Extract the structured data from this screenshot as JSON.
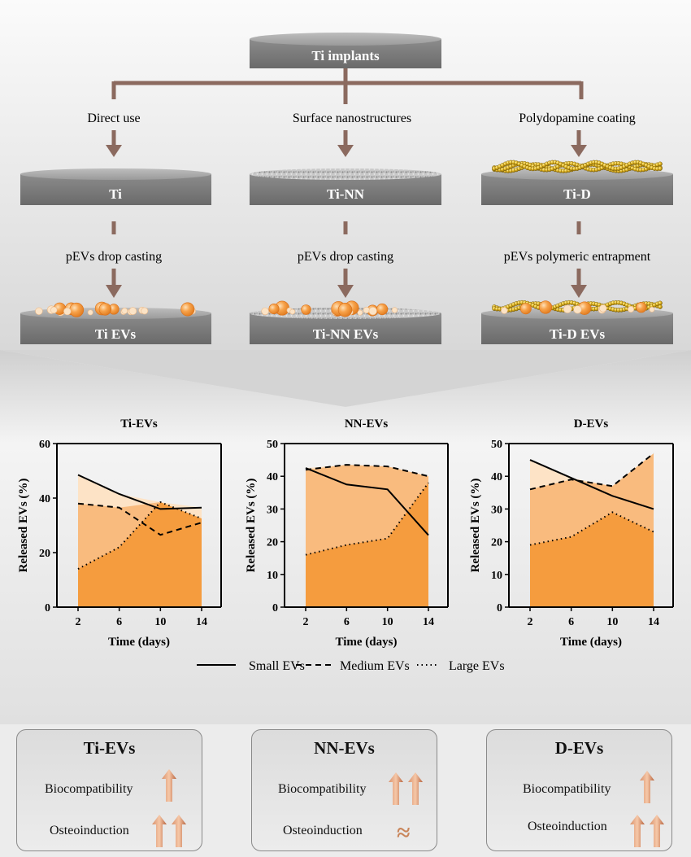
{
  "flowchart": {
    "top_label": "Ti implants",
    "branches": [
      {
        "method": "Direct use",
        "surface": "Ti",
        "load_method": "pEVs drop casting",
        "result": "Ti EVs"
      },
      {
        "method": "Surface nanostructures",
        "surface": "Ti-NN",
        "load_method": "pEVs drop casting",
        "result": "Ti-NN EVs"
      },
      {
        "method": "Polydopamine coating",
        "surface": "Ti-D",
        "load_method": "pEVs polymeric entrapment",
        "result": "Ti-D EVs"
      }
    ],
    "colors": {
      "arrow": "#8b6a5f",
      "disc": "#7f7f7f",
      "ev": "#f39a3d"
    }
  },
  "chart_data": [
    {
      "type": "area",
      "title": "Ti-EVs",
      "xlabel": "Time (days)",
      "ylabel": "Released EVs (%)",
      "x": [
        2,
        6,
        10,
        14
      ],
      "xticks": [
        "2",
        "6",
        "10",
        "14"
      ],
      "ylim": [
        0,
        60
      ],
      "yticks": [
        "0",
        "20",
        "40",
        "60"
      ],
      "series": [
        {
          "name": "Small EVs",
          "values": [
            48.5,
            41.5,
            36,
            36.5
          ]
        },
        {
          "name": "Medium EVs",
          "values": [
            38,
            36.5,
            26.5,
            31
          ]
        },
        {
          "name": "Large EVs",
          "values": [
            14,
            22,
            38.5,
            32.5
          ]
        }
      ]
    },
    {
      "type": "area",
      "title": "NN-EVs",
      "xlabel": "Time (days)",
      "ylabel": "Released EVs (%)",
      "x": [
        2,
        6,
        10,
        14
      ],
      "xticks": [
        "2",
        "6",
        "10",
        "14"
      ],
      "ylim": [
        0,
        50
      ],
      "yticks": [
        "0",
        "10",
        "20",
        "30",
        "40",
        "50"
      ],
      "series": [
        {
          "name": "Small EVs",
          "values": [
            42.5,
            37.5,
            36,
            22
          ]
        },
        {
          "name": "Medium EVs",
          "values": [
            42,
            43.5,
            43,
            40
          ]
        },
        {
          "name": "Large EVs",
          "values": [
            16,
            19,
            21,
            38
          ]
        }
      ]
    },
    {
      "type": "area",
      "title": "D-EVs",
      "xlabel": "Time (days)",
      "ylabel": "Released EVs (%)",
      "x": [
        2,
        6,
        10,
        14
      ],
      "xticks": [
        "2",
        "6",
        "10",
        "14"
      ],
      "ylim": [
        0,
        50
      ],
      "yticks": [
        "0",
        "10",
        "20",
        "30",
        "40",
        "50"
      ],
      "series": [
        {
          "name": "Small EVs",
          "values": [
            45,
            39.5,
            34,
            30
          ]
        },
        {
          "name": "Medium EVs",
          "values": [
            36,
            39,
            37,
            47
          ]
        },
        {
          "name": "Large EVs",
          "values": [
            19,
            21.5,
            29,
            23
          ]
        }
      ]
    }
  ],
  "legend": {
    "items": [
      "Small EVs",
      "Medium EVs",
      "Large EVs"
    ]
  },
  "summary": [
    {
      "title": "Ti-EVs",
      "biocompatibility_label": "Biocompatibility",
      "biocompatibility_arrows": 1,
      "osteoinduction_label": "Osteoinduction",
      "osteoinduction_arrows": 2,
      "osteoinduction_symbol": ""
    },
    {
      "title": "NN-EVs",
      "biocompatibility_label": "Biocompatibility",
      "biocompatibility_arrows": 2,
      "osteoinduction_label": "Osteoinduction",
      "osteoinduction_arrows": 0,
      "osteoinduction_symbol": "≈"
    },
    {
      "title": "D-EVs",
      "biocompatibility_label": "Biocompatibility",
      "biocompatibility_arrows": 1,
      "osteoinduction_label": "Osteoinduction",
      "osteoinduction_arrows": 2,
      "osteoinduction_symbol": ""
    }
  ]
}
